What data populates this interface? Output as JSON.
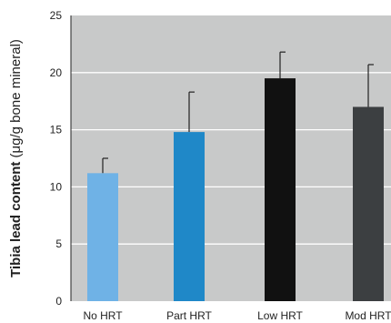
{
  "chart_data": {
    "type": "bar",
    "categories": [
      "No HRT",
      "Part HRT",
      "Low HRT",
      "Mod HRT"
    ],
    "values": [
      11.2,
      14.8,
      19.5,
      17.0
    ],
    "error_upper": [
      12.5,
      18.3,
      21.8,
      20.7
    ],
    "ylim": [
      0,
      25
    ],
    "yticks": [
      0,
      5,
      10,
      15,
      20,
      25
    ],
    "ylabel_bold": "Tibia lead content",
    "ylabel_rest": " (μg/g bone mineral)",
    "grid": true,
    "colors": {
      "plot_background": "#c8c9c9",
      "gridline": "#ffffff",
      "bars": [
        "#6fb2e6",
        "#1f88c8",
        "#111111",
        "#3c3f41"
      ],
      "error_bar": "#222222"
    }
  }
}
